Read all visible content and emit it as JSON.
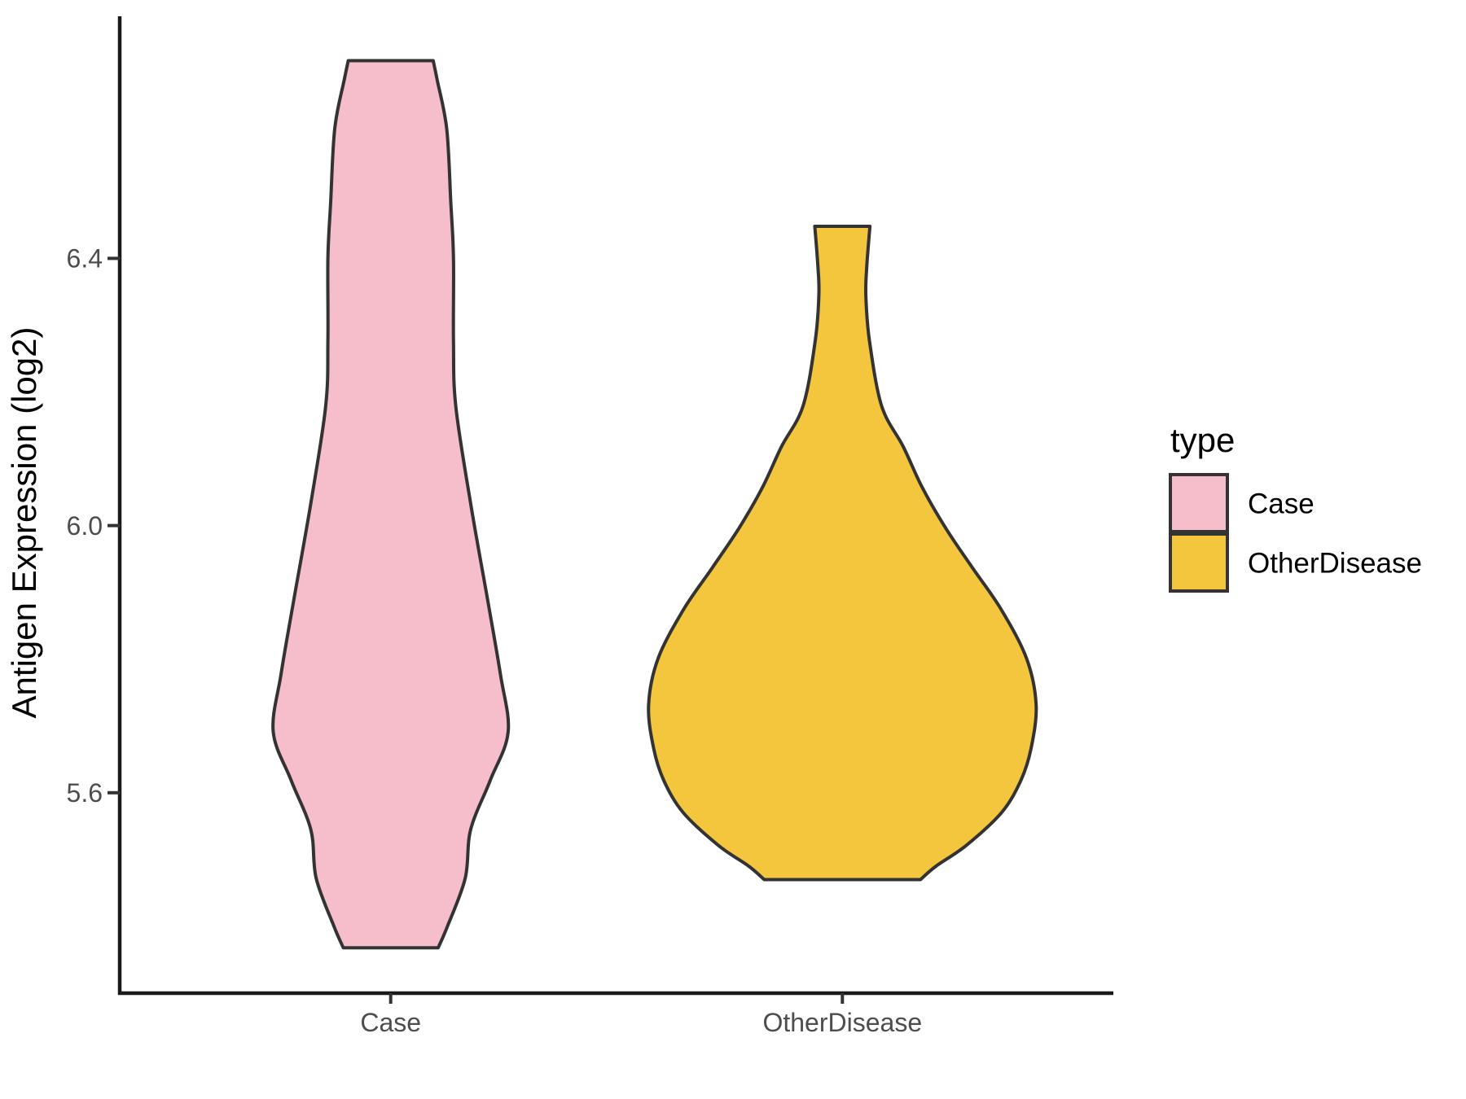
{
  "chart_data": {
    "type": "violin",
    "title": "",
    "xlabel": "",
    "ylabel": "Antigen Expression (log2)",
    "ylim": [
      5.3,
      6.76
    ],
    "grid": false,
    "yticks": [
      {
        "value": 6.4,
        "label": "6.4"
      },
      {
        "value": 6.0,
        "label": "6.0"
      },
      {
        "value": 5.6,
        "label": "5.6"
      }
    ],
    "categories": [
      {
        "position": 1,
        "label": "Case"
      },
      {
        "position": 2,
        "label": "OtherDisease"
      }
    ],
    "legend": {
      "title": "type",
      "position": "right",
      "entries": [
        {
          "label": "Case",
          "fill": "#F6BDCA"
        },
        {
          "label": "OtherDisease",
          "fill": "#F4C63D"
        }
      ]
    },
    "style": {
      "outline": "#333333",
      "axis_color": "#1A1A1A",
      "tick_color": "#333333",
      "tick_label_color": "#4D4D4D",
      "title_color": "#000000",
      "background": "#FFFFFF"
    },
    "violins": [
      {
        "category": "Case",
        "fill": "#F6BDCA",
        "center": 1,
        "value_range": [
          5.37,
          6.7
        ],
        "profile": [
          {
            "v": 6.696,
            "w": 0.094
          },
          {
            "v": 6.667,
            "w": 0.103
          },
          {
            "v": 6.594,
            "w": 0.124
          },
          {
            "v": 6.484,
            "w": 0.133
          },
          {
            "v": 6.4,
            "w": 0.139
          },
          {
            "v": 6.277,
            "w": 0.139
          },
          {
            "v": 6.179,
            "w": 0.144
          },
          {
            "v": 6.033,
            "w": 0.177
          },
          {
            "v": 5.887,
            "w": 0.215
          },
          {
            "v": 5.777,
            "w": 0.243
          },
          {
            "v": 5.691,
            "w": 0.26
          },
          {
            "v": 5.618,
            "w": 0.22
          },
          {
            "v": 5.545,
            "w": 0.177
          },
          {
            "v": 5.472,
            "w": 0.165
          },
          {
            "v": 5.399,
            "w": 0.125
          },
          {
            "v": 5.368,
            "w": 0.105
          }
        ]
      },
      {
        "category": "OtherDisease",
        "fill": "#F4C63D",
        "center": 2,
        "value_range": [
          5.47,
          6.45
        ],
        "profile": [
          {
            "v": 6.448,
            "w": 0.061
          },
          {
            "v": 6.387,
            "w": 0.054
          },
          {
            "v": 6.344,
            "w": 0.052
          },
          {
            "v": 6.277,
            "w": 0.06
          },
          {
            "v": 6.179,
            "w": 0.087
          },
          {
            "v": 6.118,
            "w": 0.135
          },
          {
            "v": 6.057,
            "w": 0.177
          },
          {
            "v": 5.996,
            "w": 0.229
          },
          {
            "v": 5.935,
            "w": 0.29
          },
          {
            "v": 5.874,
            "w": 0.352
          },
          {
            "v": 5.801,
            "w": 0.408
          },
          {
            "v": 5.732,
            "w": 0.429
          },
          {
            "v": 5.667,
            "w": 0.418
          },
          {
            "v": 5.618,
            "w": 0.395
          },
          {
            "v": 5.57,
            "w": 0.352
          },
          {
            "v": 5.521,
            "w": 0.274
          },
          {
            "v": 5.49,
            "w": 0.207
          },
          {
            "v": 5.47,
            "w": 0.173
          }
        ]
      }
    ]
  }
}
